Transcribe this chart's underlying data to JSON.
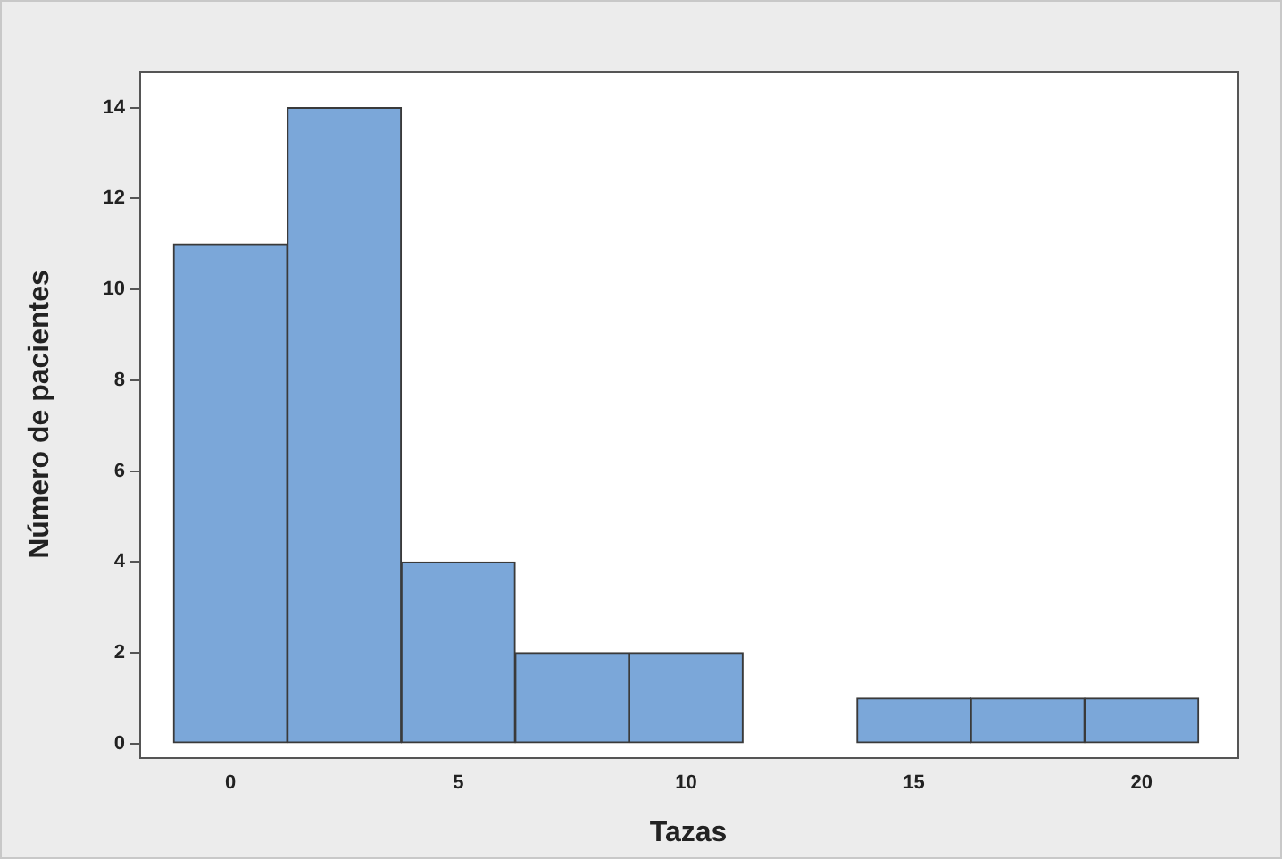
{
  "chart_data": {
    "type": "histogram",
    "xlabel": "Tazas",
    "ylabel": "Número de pacientes",
    "bins": [
      -1.25,
      1.25,
      3.75,
      6.25,
      8.75,
      11.25,
      13.75,
      16.25,
      18.75,
      21.25
    ],
    "values": [
      11,
      14,
      4,
      2,
      2,
      0,
      1,
      1,
      1
    ],
    "color": "#7ba7d9",
    "xlim": [
      -2,
      22.1
    ],
    "xticks": [
      0,
      5,
      10,
      15,
      20
    ],
    "ylim": [
      -0.3,
      14.8
    ],
    "yticks": [
      0,
      2,
      4,
      6,
      8,
      10,
      12,
      14
    ],
    "grid": false,
    "legend": false
  }
}
